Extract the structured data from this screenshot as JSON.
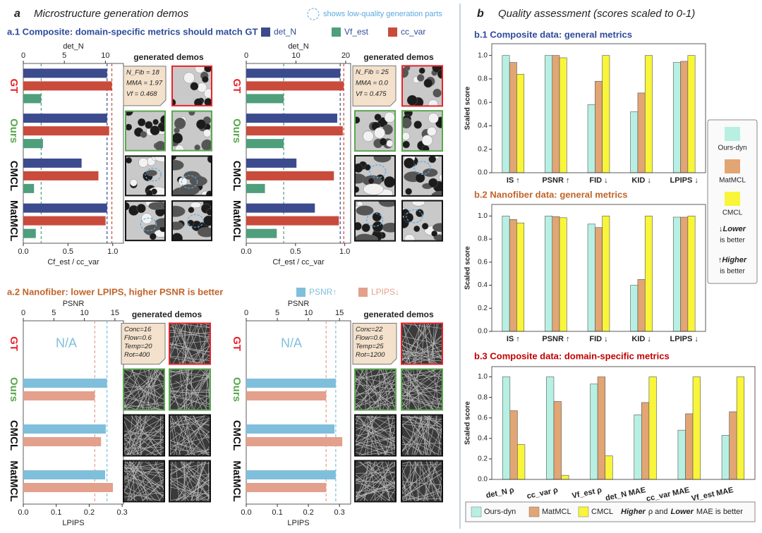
{
  "panel_a": {
    "letter": "a",
    "title": "Microstructure generation demos",
    "low_quality_note": "shows low-quality generation parts",
    "a1_title": "a.1 Composite: domain-specific metrics should match GT",
    "a2_title": "a.2 Nanofiber: lower LPIPS, higher PSNR is better"
  },
  "panel_b": {
    "letter": "b",
    "title": "Quality assessment (scores scaled to 0-1)",
    "b1_title": "b.1 Composite data: general metrics",
    "b2_title": "b.2 Nanofiber data: general metrics",
    "b3_title": "b.3 Composite data: domain-specific metrics",
    "side_legend_notes": [
      [
        "↓Lower",
        "is better"
      ],
      [
        "↑Higher",
        "is better"
      ]
    ],
    "bottom_note": [
      "Higher",
      "ρ and",
      "Lower",
      "MAE is better"
    ]
  },
  "chart_data": [
    {
      "type": "hbar",
      "x2label": "det_N",
      "xlabel": "Cf_est / cc_var",
      "x2lim": [
        0,
        12.2
      ],
      "x2ticks": [
        0,
        5,
        10
      ],
      "xlim": [
        0,
        1.12
      ],
      "xticks": [
        {
          "value": 0,
          "label": "0.0"
        },
        0.5,
        {
          "value": 1,
          "label": "1.0"
        }
      ],
      "categories": [
        "GT",
        "Ours",
        "CMCL",
        "MatMCL"
      ],
      "category_colors": [
        "#e8232a",
        "#5aa84f",
        "#111111",
        "#111111"
      ],
      "series": [
        {
          "name": "det_N",
          "color": "#3c4a8e",
          "axis": "x2",
          "values": [
            10.2,
            10.2,
            7.1,
            10.2
          ]
        },
        {
          "name": "Vf_est",
          "color": "#4f9e7c",
          "values": [
            0.2,
            0.22,
            0.12,
            0.14
          ]
        },
        {
          "name": "cc_var",
          "color": "#c94b3b",
          "values": [
            0.99,
            0.96,
            0.84,
            0.92
          ]
        }
      ],
      "bar_order": [
        0,
        2,
        1
      ],
      "reference_category": 0,
      "demos_label": "generated demos",
      "annotation": [
        "N_Fib = 18",
        "MMA = 1.97",
        "Vf = 0.468"
      ]
    },
    {
      "type": "hbar",
      "x2label": "det_N",
      "xlabel": "Cf_est / cc_var",
      "x2lim": [
        0,
        21
      ],
      "x2ticks": [
        0,
        10,
        20
      ],
      "xlim": [
        0,
        1.06
      ],
      "xticks": [
        {
          "value": 0,
          "label": "0.0"
        },
        0.5,
        {
          "value": 1,
          "label": "1.0"
        }
      ],
      "categories": [
        "GT",
        "Ours",
        "CMCL",
        "MatMCL"
      ],
      "category_colors": [
        "#e8232a",
        "#5aa84f",
        "#111111",
        "#111111"
      ],
      "series": [
        {
          "name": "det_N",
          "color": "#3c4a8e",
          "axis": "x2",
          "values": [
            18.9,
            18.3,
            10.1,
            13.8
          ]
        },
        {
          "name": "Vf_est",
          "color": "#4f9e7c",
          "values": [
            0.38,
            0.38,
            0.19,
            0.31
          ]
        },
        {
          "name": "cc_var",
          "color": "#c94b3b",
          "values": [
            0.99,
            0.98,
            0.89,
            0.94
          ]
        }
      ],
      "bar_order": [
        0,
        2,
        1
      ],
      "reference_category": 0,
      "demos_label": "generated demos",
      "annotation": [
        "N_Fib = 25",
        "MMA = 0.0",
        "Vf = 0.475"
      ]
    },
    {
      "type": "hbar",
      "x2label": "PSNR",
      "xlabel": "LPIPS",
      "x2lim": [
        0,
        16.4
      ],
      "x2ticks": [
        0,
        5,
        10,
        15
      ],
      "xlim": [
        0,
        0.304
      ],
      "xticks": [
        {
          "value": 0,
          "label": "0.0"
        },
        0.1,
        0.2,
        0.3
      ],
      "categories": [
        "GT",
        "Ours",
        "CMCL",
        "MatMCL"
      ],
      "category_colors": [
        "#e8232a",
        "#5aa84f",
        "#111111",
        "#111111"
      ],
      "series": [
        {
          "name": "PSNR↑",
          "color": "#7fbfdc",
          "axis": "x2",
          "values": [
            null,
            13.7,
            13.5,
            13.4
          ]
        },
        {
          "name": "LPIPS↓",
          "color": "#e3a08c",
          "values": [
            null,
            0.217,
            0.236,
            0.272
          ]
        }
      ],
      "bar_order": [
        0,
        1
      ],
      "reference_category": 1,
      "na_label": "N/A",
      "demos_label": "generated demos",
      "annotation": [
        "Conc=16",
        "Flow=0.6",
        "Temp=20",
        "Rot=400"
      ]
    },
    {
      "type": "hbar",
      "x2label": "PSNR",
      "xlabel": "LPIPS",
      "x2lim": [
        0,
        16.8
      ],
      "x2ticks": [
        0,
        5,
        10,
        15
      ],
      "xlim": [
        0,
        0.336
      ],
      "xticks": [
        {
          "value": 0,
          "label": "0.0"
        },
        0.1,
        0.2,
        0.3
      ],
      "categories": [
        "GT",
        "Ours",
        "CMCL",
        "MatMCL"
      ],
      "category_colors": [
        "#e8232a",
        "#5aa84f",
        "#111111",
        "#111111"
      ],
      "series": [
        {
          "name": "PSNR↑",
          "color": "#7fbfdc",
          "axis": "x2",
          "values": [
            null,
            14.4,
            14.2,
            14.4
          ]
        },
        {
          "name": "LPIPS↓",
          "color": "#e3a08c",
          "values": [
            null,
            0.257,
            0.309,
            0.257
          ]
        }
      ],
      "bar_order": [
        0,
        1
      ],
      "reference_category": 1,
      "na_label": "N/A",
      "demos_label": "generated demos",
      "annotation": [
        "Conc=22",
        "Flow=0.6",
        "Temp=25",
        "Rot=1200"
      ]
    },
    {
      "type": "bar",
      "ylabel": "Scaled score",
      "categories": [
        "IS ↑",
        "PSNR ↑",
        "FID ↓",
        "KID ↓",
        "LPIPS ↓"
      ],
      "ylim": [
        0,
        1.1
      ],
      "yticks": [
        {
          "value": 0,
          "label": "0.0"
        },
        0.2,
        0.4,
        0.6,
        0.8,
        {
          "value": 1,
          "label": "1.0"
        }
      ],
      "series": [
        {
          "name": "Ours-dyn",
          "color": "#b7f0e2",
          "values": [
            1.0,
            1.0,
            0.58,
            0.52,
            0.94
          ]
        },
        {
          "name": "MatMCL",
          "color": "#e2a574",
          "values": [
            0.94,
            1.0,
            0.78,
            0.68,
            0.95
          ]
        },
        {
          "name": "CMCL",
          "color": "#f8f53a",
          "values": [
            0.84,
            0.98,
            1.0,
            1.0,
            1.0
          ]
        }
      ]
    },
    {
      "type": "bar",
      "ylabel": "Scaled score",
      "categories": [
        "IS ↑",
        "PSNR ↑",
        "FID ↓",
        "KID ↓",
        "LPIPS ↓"
      ],
      "ylim": [
        0,
        1.1
      ],
      "yticks": [
        {
          "value": 0,
          "label": "0.0"
        },
        0.2,
        0.4,
        0.6,
        0.8,
        {
          "value": 1,
          "label": "1.0"
        }
      ],
      "series": [
        {
          "name": "Ours-dyn",
          "color": "#b7f0e2",
          "values": [
            1.0,
            1.0,
            0.93,
            0.4,
            0.99
          ]
        },
        {
          "name": "MatMCL",
          "color": "#e2a574",
          "values": [
            0.97,
            0.995,
            0.9,
            0.45,
            0.99
          ]
        },
        {
          "name": "CMCL",
          "color": "#f8f53a",
          "values": [
            0.94,
            0.985,
            1.0,
            1.0,
            1.0
          ]
        }
      ]
    },
    {
      "type": "bar",
      "ylabel": "Scaled score",
      "categories": [
        "det_N ρ",
        "cc_var ρ",
        "Vf_est ρ",
        "det_N MAE",
        "cc_var MAE",
        "Vf_est MAE"
      ],
      "ylim": [
        0,
        1.1
      ],
      "yticks": [
        {
          "value": 0,
          "label": "0.0"
        },
        0.2,
        0.4,
        0.6,
        0.8,
        {
          "value": 1,
          "label": "1.0"
        }
      ],
      "series": [
        {
          "name": "Ours-dyn",
          "color": "#b7f0e2",
          "values": [
            1.0,
            1.0,
            0.93,
            0.63,
            0.48,
            0.43
          ]
        },
        {
          "name": "MatMCL",
          "color": "#e2a574",
          "values": [
            0.67,
            0.76,
            1.0,
            0.75,
            0.64,
            0.66
          ]
        },
        {
          "name": "CMCL",
          "color": "#f8f53a",
          "values": [
            0.34,
            0.04,
            0.23,
            1.0,
            1.0,
            1.0
          ]
        }
      ]
    }
  ]
}
